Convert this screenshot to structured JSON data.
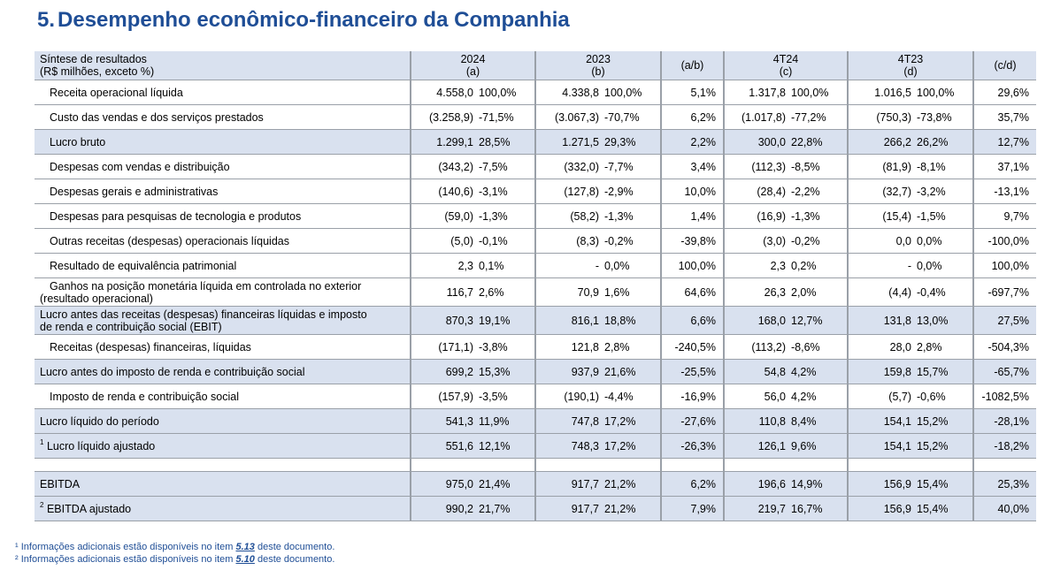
{
  "title": {
    "number": "5.",
    "text": "Desempenho econômico-financeiro da Companhia"
  },
  "header": {
    "label_line1": "Síntese de resultados",
    "label_line2": "(R$ milhões, exceto %)",
    "y2024": "2024",
    "y2024_sub": "(a)",
    "y2023": "2023",
    "y2023_sub": "(b)",
    "ab": "(a/b)",
    "q4t24": "4T24",
    "q4t24_sub": "(c)",
    "q4t23": "4T23",
    "q4t23_sub": "(d)",
    "cd": "(c/d)"
  },
  "rows": [
    {
      "label": "Receita operacional líquida",
      "v1": "4.558,0",
      "p1": "100,0%",
      "v2": "4.338,8",
      "p2": "100,0%",
      "ab": "5,1%",
      "v3": "1.317,8",
      "p3": "100,0%",
      "v4": "1.016,5",
      "p4": "100,0%",
      "cd": "29,6%"
    },
    {
      "label": "Custo das vendas e dos serviços prestados",
      "v1": "(3.258,9)",
      "p1": "-71,5%",
      "v2": "(3.067,3)",
      "p2": "-70,7%",
      "ab": "6,2%",
      "v3": "(1.017,8)",
      "p3": "-77,2%",
      "v4": "(750,3)",
      "p4": "-73,8%",
      "cd": "35,7%"
    },
    {
      "label": "Lucro bruto",
      "v1": "1.299,1",
      "p1": "28,5%",
      "v2": "1.271,5",
      "p2": "29,3%",
      "ab": "2,2%",
      "v3": "300,0",
      "p3": "22,8%",
      "v4": "266,2",
      "p4": "26,2%",
      "cd": "12,7%"
    },
    {
      "label": "Despesas com vendas e distribuição",
      "v1": "(343,2)",
      "p1": "-7,5%",
      "v2": "(332,0)",
      "p2": "-7,7%",
      "ab": "3,4%",
      "v3": "(112,3)",
      "p3": "-8,5%",
      "v4": "(81,9)",
      "p4": "-8,1%",
      "cd": "37,1%"
    },
    {
      "label": "Despesas gerais e administrativas",
      "v1": "(140,6)",
      "p1": "-3,1%",
      "v2": "(127,8)",
      "p2": "-2,9%",
      "ab": "10,0%",
      "v3": "(28,4)",
      "p3": "-2,2%",
      "v4": "(32,7)",
      "p4": "-3,2%",
      "cd": "-13,1%"
    },
    {
      "label": "Despesas para pesquisas de tecnologia e produtos",
      "v1": "(59,0)",
      "p1": "-1,3%",
      "v2": "(58,2)",
      "p2": "-1,3%",
      "ab": "1,4%",
      "v3": "(16,9)",
      "p3": "-1,3%",
      "v4": "(15,4)",
      "p4": "-1,5%",
      "cd": "9,7%"
    },
    {
      "label": "Outras receitas (despesas) operacionais líquidas",
      "v1": "(5,0)",
      "p1": "-0,1%",
      "v2": "(8,3)",
      "p2": "-0,2%",
      "ab": "-39,8%",
      "v3": "(3,0)",
      "p3": "-0,2%",
      "v4": "0,0",
      "p4": "0,0%",
      "cd": "-100,0%"
    },
    {
      "label": "Resultado de equivalência patrimonial",
      "v1": "2,3",
      "p1": "0,1%",
      "v2": "-",
      "p2": "0,0%",
      "ab": "100,0%",
      "v3": "2,3",
      "p3": "0,2%",
      "v4": "-",
      "p4": "0,0%",
      "cd": "100,0%"
    },
    {
      "label_a": "Ganhos na posição monetária líquida em controlada no exterior",
      "label_b": "(resultado operacional)",
      "v1": "116,7",
      "p1": "2,6%",
      "v2": "70,9",
      "p2": "1,6%",
      "ab": "64,6%",
      "v3": "26,3",
      "p3": "2,0%",
      "v4": "(4,4)",
      "p4": "-0,4%",
      "cd": "-697,7%"
    },
    {
      "label_a": "Lucro antes das receitas (despesas)  financeiras líquidas e imposto",
      "label_b": "de renda e contribuição social (EBIT)",
      "v1": "870,3",
      "p1": "19,1%",
      "v2": "816,1",
      "p2": "18,8%",
      "ab": "6,6%",
      "v3": "168,0",
      "p3": "12,7%",
      "v4": "131,8",
      "p4": "13,0%",
      "cd": "27,5%"
    },
    {
      "label": "Receitas (despesas) financeiras, líquidas",
      "v1": "(171,1)",
      "p1": "-3,8%",
      "v2": "121,8",
      "p2": "2,8%",
      "ab": "-240,5%",
      "v3": "(113,2)",
      "p3": "-8,6%",
      "v4": "28,0",
      "p4": "2,8%",
      "cd": "-504,3%"
    },
    {
      "label": "Lucro antes do imposto de renda e contribuição social",
      "v1": "699,2",
      "p1": "15,3%",
      "v2": "937,9",
      "p2": "21,6%",
      "ab": "-25,5%",
      "v3": "54,8",
      "p3": "4,2%",
      "v4": "159,8",
      "p4": "15,7%",
      "cd": "-65,7%"
    },
    {
      "label": "Imposto de renda e contribuição social",
      "v1": "(157,9)",
      "p1": "-3,5%",
      "v2": "(190,1)",
      "p2": "-4,4%",
      "ab": "-16,9%",
      "v3": "56,0",
      "p3": "4,2%",
      "v4": "(5,7)",
      "p4": "-0,6%",
      "cd": "-1082,5%"
    },
    {
      "label": "Lucro líquido do período",
      "v1": "541,3",
      "p1": "11,9%",
      "v2": "747,8",
      "p2": "17,2%",
      "ab": "-27,6%",
      "v3": "110,8",
      "p3": "8,4%",
      "v4": "154,1",
      "p4": "15,2%",
      "cd": "-28,1%"
    },
    {
      "sup": "1",
      "label": "Lucro líquido ajustado",
      "v1": "551,6",
      "p1": "12,1%",
      "v2": "748,3",
      "p2": "17,2%",
      "ab": "-26,3%",
      "v3": "126,1",
      "p3": "9,6%",
      "v4": "154,1",
      "p4": "15,2%",
      "cd": "-18,2%"
    },
    {
      "label": "EBITDA",
      "v1": "975,0",
      "p1": "21,4%",
      "v2": "917,7",
      "p2": "21,2%",
      "ab": "6,2%",
      "v3": "196,6",
      "p3": "14,9%",
      "v4": "156,9",
      "p4": "15,4%",
      "cd": "25,3%"
    },
    {
      "sup": "2",
      "label": "EBITDA ajustado",
      "v1": "990,2",
      "p1": "21,7%",
      "v2": "917,7",
      "p2": "21,2%",
      "ab": "7,9%",
      "v3": "219,7",
      "p3": "16,7%",
      "v4": "156,9",
      "p4": "15,4%",
      "cd": "40,0%"
    }
  ],
  "footnotes": [
    {
      "mark": "¹",
      "pre": "Informações adicionais estão disponíveis no item ",
      "ref": "5.13",
      "post": " deste documento."
    },
    {
      "mark": "²",
      "pre": "Informações adicionais estão disponíveis no item ",
      "ref": "5.10",
      "post": " deste documento."
    }
  ]
}
